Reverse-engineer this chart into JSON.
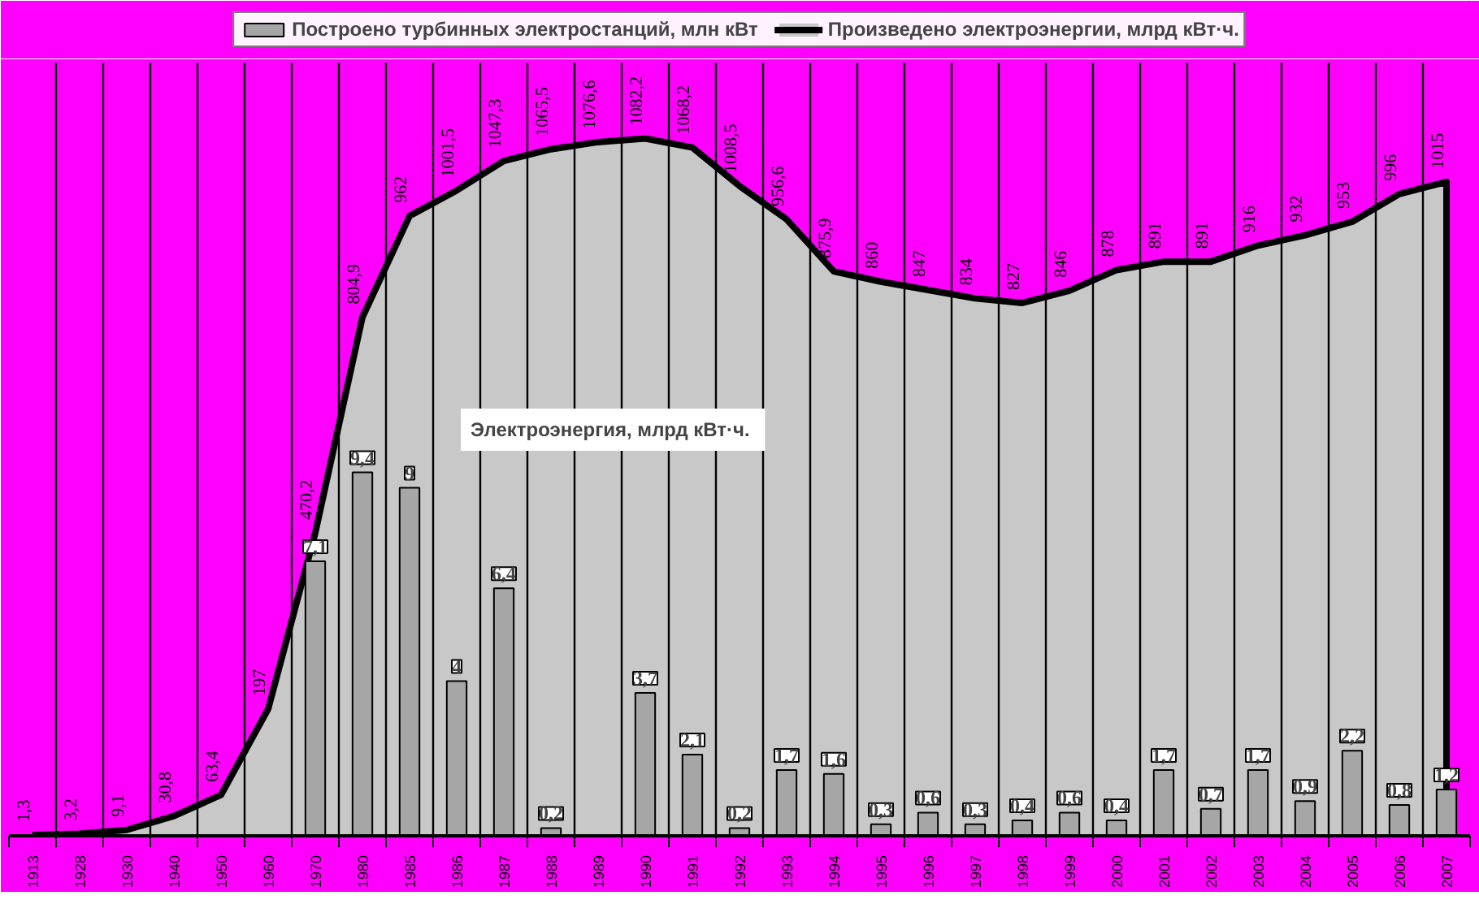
{
  "chart_data": {
    "type": "bar",
    "categories": [
      "1913",
      "1928",
      "1930",
      "1940",
      "1950",
      "1960",
      "1970",
      "1980",
      "1985",
      "1986",
      "1987",
      "1988",
      "1989",
      "1990",
      "1991",
      "1992",
      "1993",
      "1994",
      "1995",
      "1996",
      "1997",
      "1998",
      "1999",
      "2000",
      "2001",
      "2002",
      "2003",
      "2004",
      "2005",
      "2006",
      "2007"
    ],
    "series": [
      {
        "name": "Построено турбинных электростанций, млн кВт",
        "color": "#a6a6a6",
        "values": [
          null,
          null,
          null,
          null,
          null,
          null,
          7.1,
          9.4,
          9,
          4,
          6.4,
          0.2,
          null,
          3.7,
          2.1,
          0.2,
          1.7,
          1.6,
          0.3,
          0.6,
          0.3,
          0.4,
          0.6,
          0.4,
          1.7,
          0.7,
          1.7,
          0.9,
          2.2,
          0.8,
          1.2
        ],
        "value_labels": [
          null,
          null,
          null,
          null,
          null,
          null,
          "7,1",
          "9,4",
          "9",
          "4",
          "6,4",
          "0,2",
          null,
          "3,7",
          "2,1",
          "0,2",
          "1,7",
          "1,6",
          "0,3",
          "0,6",
          "0,3",
          "0,4",
          "0,6",
          "0,4",
          "1,7",
          "0,7",
          "1,7",
          "0,9",
          "2,2",
          "0,8",
          "1,2"
        ]
      },
      {
        "name": "Произведено электроэнергии, млрд кВт·ч.",
        "type": "area",
        "axis": "y2",
        "color": "#c8c8c8",
        "values": [
          1.3,
          3.2,
          9.1,
          30.8,
          63.4,
          197,
          470.2,
          804.9,
          962,
          1001.5,
          1047.3,
          1065.5,
          1076.6,
          1082.2,
          1068.2,
          1008.5,
          956.6,
          875.9,
          860,
          847,
          834,
          827,
          846,
          878,
          891,
          891,
          916,
          932,
          953,
          996,
          1015
        ],
        "value_labels": [
          "1,3",
          "3,2",
          "9,1",
          "30,8",
          "63,4",
          "197",
          "470,2",
          "804,9",
          "962",
          "1001,5",
          "1047,3",
          "1065,5",
          "1076,6",
          "1082,2",
          "1068,2",
          "1008,5",
          "956,6",
          "875,9",
          "860",
          "847",
          "834",
          "827",
          "846",
          "878",
          "891",
          "891",
          "916",
          "932",
          "953",
          "996",
          "1015"
        ]
      }
    ],
    "ylim": [
      0,
      20
    ],
    "y2lim": [
      0,
      1200
    ],
    "tick_labels": "x",
    "grid": "x",
    "legend": "top",
    "annotations": [
      "Электроэнергия, млрд  кВт·ч."
    ]
  }
}
